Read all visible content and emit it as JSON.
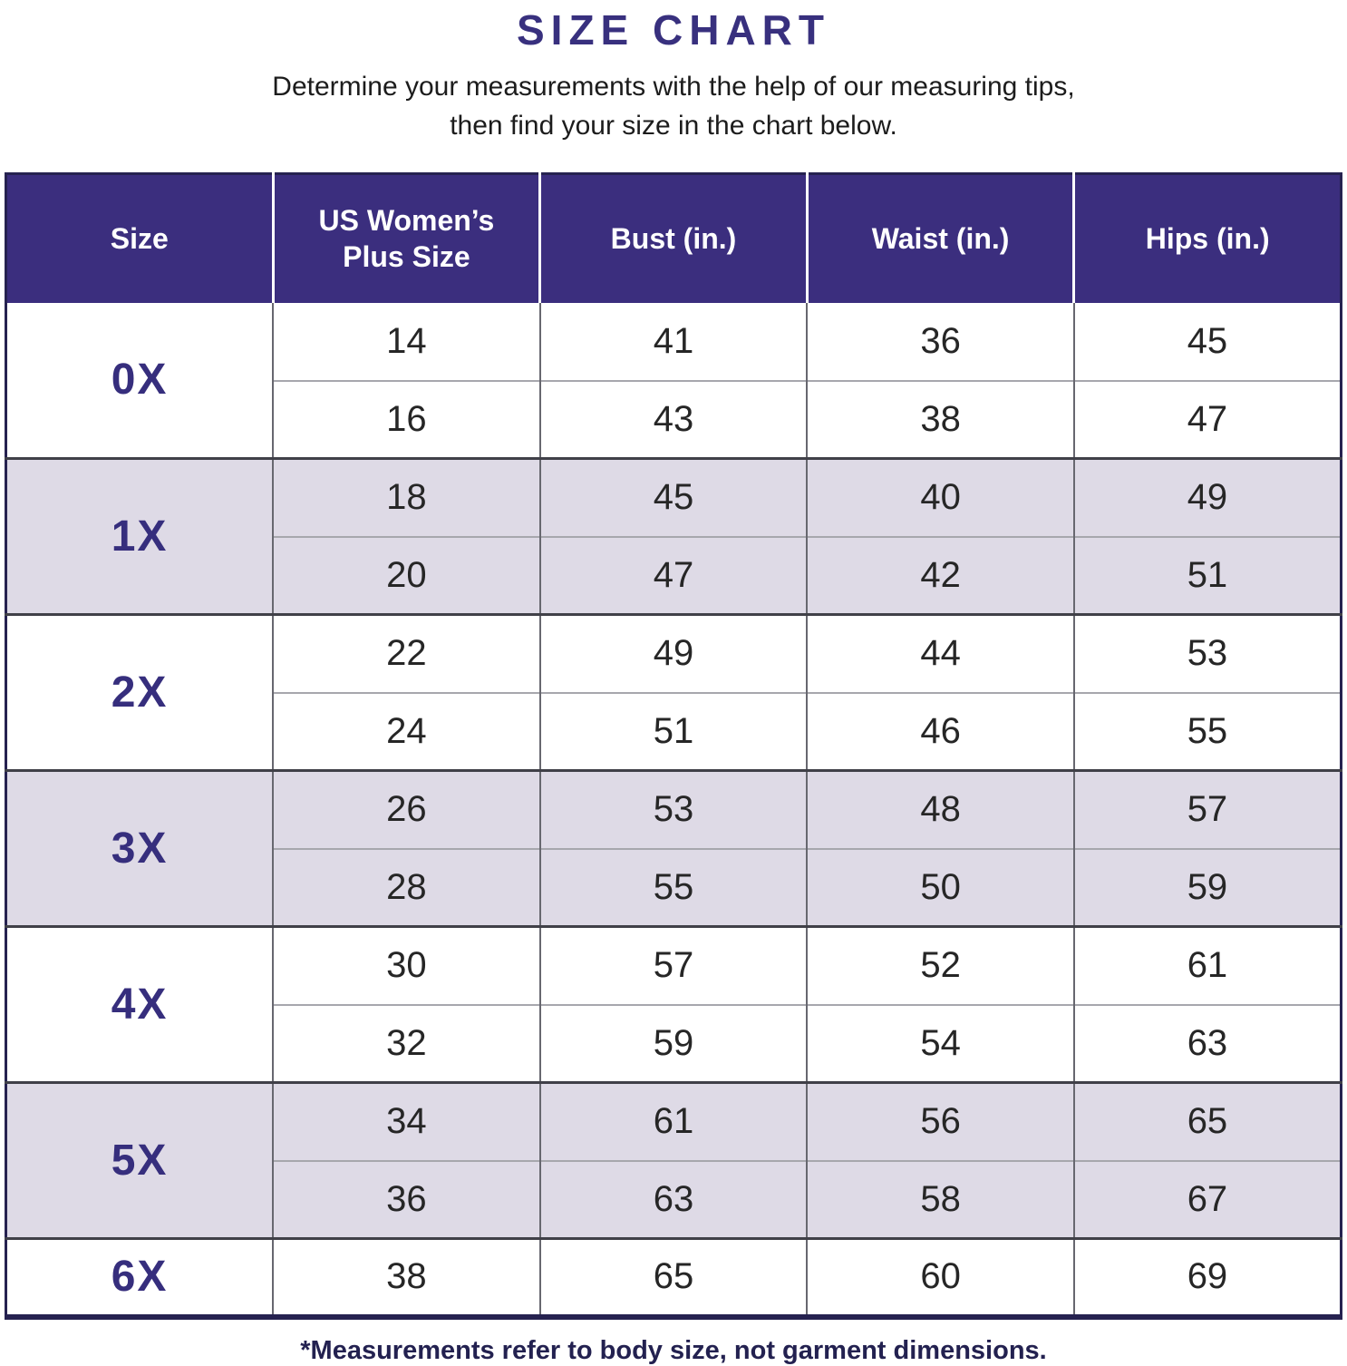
{
  "page": {
    "title": "SIZE CHART",
    "subtitle_line1": "Determine your measurements with the help of our measuring tips,",
    "subtitle_line2": "then find your size in the chart below.",
    "footnote": "*Measurements refer to body size, not garment dimensions."
  },
  "colors": {
    "header_bg": "#3b2e7e",
    "header_text": "#ffffff",
    "title_color": "#38307e",
    "size_label_color": "#362e7d",
    "row_bg": "#ffffff",
    "row_alt_bg": "#dedae6",
    "cell_text": "#262626",
    "subtitle_color": "#1c1c1c",
    "footnote_color": "#232150",
    "outer_border": "#262250",
    "group_border": "#404048",
    "inner_border": "#a7a7ad",
    "col_border": "#67676f"
  },
  "chart_data": {
    "type": "table",
    "title": "SIZE CHART",
    "columns": [
      "Size",
      "US Women’s Plus Size",
      "Bust (in.)",
      "Waist (in.)",
      "Hips (in.)"
    ],
    "units": "inches",
    "groups": [
      {
        "size": "0X",
        "shaded": false,
        "rows": [
          [
            14,
            41,
            36,
            45
          ],
          [
            16,
            43,
            38,
            47
          ]
        ]
      },
      {
        "size": "1X",
        "shaded": true,
        "rows": [
          [
            18,
            45,
            40,
            49
          ],
          [
            20,
            47,
            42,
            51
          ]
        ]
      },
      {
        "size": "2X",
        "shaded": false,
        "rows": [
          [
            22,
            49,
            44,
            53
          ],
          [
            24,
            51,
            46,
            55
          ]
        ]
      },
      {
        "size": "3X",
        "shaded": true,
        "rows": [
          [
            26,
            53,
            48,
            57
          ],
          [
            28,
            55,
            50,
            59
          ]
        ]
      },
      {
        "size": "4X",
        "shaded": false,
        "rows": [
          [
            30,
            57,
            52,
            61
          ],
          [
            32,
            59,
            54,
            63
          ]
        ]
      },
      {
        "size": "5X",
        "shaded": true,
        "rows": [
          [
            34,
            61,
            56,
            65
          ],
          [
            36,
            63,
            58,
            67
          ]
        ]
      },
      {
        "size": "6X",
        "shaded": false,
        "rows": [
          [
            38,
            65,
            60,
            69
          ]
        ]
      }
    ]
  }
}
